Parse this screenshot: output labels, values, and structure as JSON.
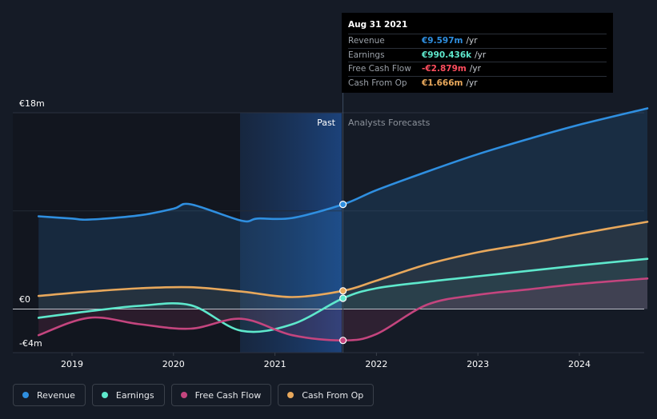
{
  "chart_data": {
    "type": "area",
    "title": "",
    "xlabel": "",
    "ylabel": "",
    "ylim": [
      -4,
      18
    ],
    "y_tick_labels": [
      "€18m",
      "€0",
      "-€4m"
    ],
    "x_tick_labels": [
      "2019",
      "2020",
      "2021",
      "2022",
      "2023",
      "2024"
    ],
    "past_label": "Past",
    "forecast_label": "Analysts Forecasts",
    "divider_date": 2021.67,
    "series": [
      {
        "name": "Revenue",
        "color": "#2f8fe0",
        "points": [
          [
            2018.67,
            8.5
          ],
          [
            2019.0,
            8.3
          ],
          [
            2019.17,
            8.2
          ],
          [
            2019.67,
            8.6
          ],
          [
            2020.0,
            9.2
          ],
          [
            2020.17,
            9.6
          ],
          [
            2020.67,
            8.1
          ],
          [
            2020.83,
            8.3
          ],
          [
            2021.17,
            8.35
          ],
          [
            2021.67,
            9.597
          ],
          [
            2022.0,
            10.9
          ],
          [
            2022.5,
            12.6
          ],
          [
            2023.0,
            14.2
          ],
          [
            2023.5,
            15.6
          ],
          [
            2024.0,
            16.9
          ],
          [
            2024.67,
            18.4
          ]
        ]
      },
      {
        "name": "Earnings",
        "color": "#5ee8cc",
        "points": [
          [
            2018.67,
            -0.8
          ],
          [
            2019.17,
            -0.2
          ],
          [
            2019.67,
            0.3
          ],
          [
            2020.17,
            0.35
          ],
          [
            2020.67,
            -2.0
          ],
          [
            2021.17,
            -1.4
          ],
          [
            2021.67,
            0.99
          ],
          [
            2022.0,
            1.9
          ],
          [
            2022.5,
            2.5
          ],
          [
            2023.0,
            3.0
          ],
          [
            2023.5,
            3.5
          ],
          [
            2024.0,
            4.0
          ],
          [
            2024.67,
            4.6
          ]
        ]
      },
      {
        "name": "Free Cash Flow",
        "color": "#c4457e",
        "points": [
          [
            2018.67,
            -2.4
          ],
          [
            2019.17,
            -0.8
          ],
          [
            2019.67,
            -1.4
          ],
          [
            2020.17,
            -1.8
          ],
          [
            2020.67,
            -0.9
          ],
          [
            2021.17,
            -2.4
          ],
          [
            2021.67,
            -2.879
          ],
          [
            2022.0,
            -2.3
          ],
          [
            2022.5,
            0.4
          ],
          [
            2023.0,
            1.3
          ],
          [
            2023.5,
            1.8
          ],
          [
            2024.0,
            2.3
          ],
          [
            2024.67,
            2.8
          ]
        ]
      },
      {
        "name": "Cash From Op",
        "color": "#e8a85c",
        "points": [
          [
            2018.67,
            1.2
          ],
          [
            2019.17,
            1.6
          ],
          [
            2019.67,
            1.9
          ],
          [
            2020.17,
            2.0
          ],
          [
            2020.67,
            1.6
          ],
          [
            2021.17,
            1.1
          ],
          [
            2021.67,
            1.666
          ],
          [
            2022.0,
            2.6
          ],
          [
            2022.5,
            4.1
          ],
          [
            2023.0,
            5.2
          ],
          [
            2023.5,
            6.0
          ],
          [
            2024.0,
            6.9
          ],
          [
            2024.67,
            8.0
          ]
        ]
      }
    ]
  },
  "tooltip": {
    "date": "Aug 31 2021",
    "rows": [
      {
        "label": "Revenue",
        "value": "€9.597m",
        "unit": "/yr",
        "color": "#2f8fe0"
      },
      {
        "label": "Earnings",
        "value": "€990.436k",
        "unit": "/yr",
        "color": "#5ee8cc"
      },
      {
        "label": "Free Cash Flow",
        "value": "-€2.879m",
        "unit": "/yr",
        "color": "#ff4d5e"
      },
      {
        "label": "Cash From Op",
        "value": "€1.666m",
        "unit": "/yr",
        "color": "#e8a85c"
      }
    ]
  },
  "legend": [
    {
      "label": "Revenue",
      "color": "#2f8fe0"
    },
    {
      "label": "Earnings",
      "color": "#5ee8cc"
    },
    {
      "label": "Free Cash Flow",
      "color": "#c4457e"
    },
    {
      "label": "Cash From Op",
      "color": "#e8a85c"
    }
  ]
}
